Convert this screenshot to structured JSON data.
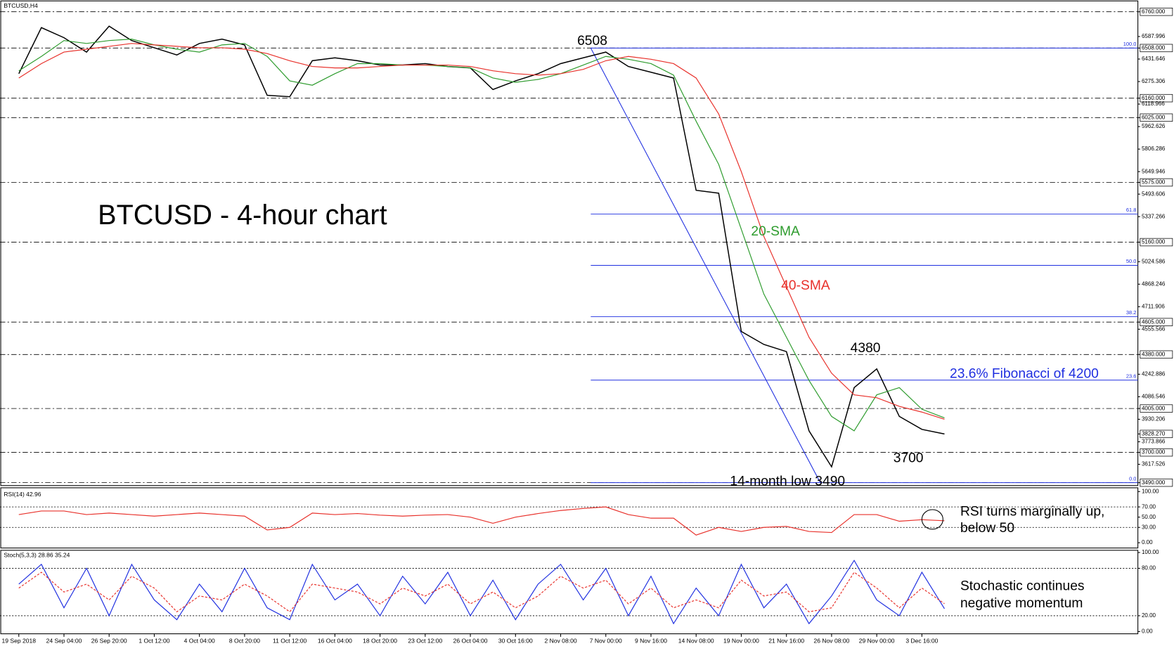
{
  "chart_data": [
    {
      "type": "line",
      "title": "BTCUSD - 4-hour chart",
      "subtitle": "BTCUSD,H4",
      "series": [
        {
          "color": "#000000",
          "values": [
            6330,
            6650,
            6580,
            6480,
            6660,
            6560,
            6510,
            6460,
            6540,
            6570,
            6530,
            6180,
            6170,
            6420,
            6440,
            6420,
            6390,
            6390,
            6400,
            6380,
            6370,
            6220,
            6280,
            6330,
            6400,
            6440,
            6480,
            6380,
            6340,
            6300,
            5520,
            5500,
            4540,
            4450,
            4400,
            3850,
            3600,
            4150,
            4280,
            3950,
            3860,
            3828.27
          ]
        },
        {
          "name": "20-SMA",
          "color": "#2e9c2e",
          "values": [
            6350,
            6450,
            6560,
            6540,
            6560,
            6570,
            6530,
            6500,
            6480,
            6530,
            6540,
            6450,
            6280,
            6250,
            6330,
            6400,
            6400,
            6390,
            6390,
            6380,
            6370,
            6300,
            6270,
            6290,
            6330,
            6390,
            6450,
            6430,
            6400,
            6320,
            6000,
            5700,
            5250,
            4800,
            4500,
            4200,
            3950,
            3850,
            4100,
            4150,
            4000,
            3940
          ]
        },
        {
          "name": "40-SMA",
          "color": "#e8312b",
          "values": [
            6300,
            6400,
            6480,
            6500,
            6520,
            6540,
            6530,
            6520,
            6510,
            6510,
            6500,
            6470,
            6420,
            6380,
            6370,
            6370,
            6380,
            6390,
            6390,
            6390,
            6380,
            6350,
            6330,
            6320,
            6330,
            6360,
            6420,
            6450,
            6430,
            6400,
            6300,
            6050,
            5650,
            5200,
            4850,
            4500,
            4250,
            4100,
            4080,
            4020,
            3980,
            3930
          ]
        }
      ],
      "ylim": [
        3470,
        6830
      ],
      "yticks": [
        {
          "value": 6760,
          "label": "6760.000"
        },
        {
          "value": 6587.996,
          "label": "6587.996"
        },
        {
          "value": 6508,
          "label": "6508.000"
        },
        {
          "value": 6431.646,
          "label": "6431.646"
        },
        {
          "value": 6275.306,
          "label": "6275.306"
        },
        {
          "value": 6160,
          "label": "6160.000"
        },
        {
          "value": 6118.966,
          "label": "6118.966"
        },
        {
          "value": 6025,
          "label": "6025.000"
        },
        {
          "value": 5962.626,
          "label": "5962.626"
        },
        {
          "value": 5806.286,
          "label": "5806.286"
        },
        {
          "value": 5649.946,
          "label": "5649.946"
        },
        {
          "value": 5575,
          "label": "5575.000"
        },
        {
          "value": 5493.606,
          "label": "5493.606"
        },
        {
          "value": 5337.266,
          "label": "5337.266"
        },
        {
          "value": 5160,
          "label": "5160.000"
        },
        {
          "value": 5024.586,
          "label": "5024.586"
        },
        {
          "value": 4868.246,
          "label": "4868.246"
        },
        {
          "value": 4711.906,
          "label": "4711.906"
        },
        {
          "value": 4605,
          "label": "4605.000"
        },
        {
          "value": 4555.566,
          "label": "4555.566"
        },
        {
          "value": 4380,
          "label": "4380.000"
        },
        {
          "value": 4242.886,
          "label": "4242.886"
        },
        {
          "value": 4086.546,
          "label": "4086.546"
        },
        {
          "value": 4005,
          "label": "4005.000"
        },
        {
          "value": 3930.206,
          "label": "3930.206"
        },
        {
          "value": 3828.27,
          "label": "3828.270"
        },
        {
          "value": 3773.866,
          "label": "3773.866"
        },
        {
          "value": 3700,
          "label": "3700.000"
        },
        {
          "value": 3617.526,
          "label": "3617.526"
        },
        {
          "value": 3490,
          "label": "3490.000"
        }
      ],
      "levels": [
        6760,
        6508,
        6160,
        6025,
        5575,
        5160,
        4605,
        4380,
        4005,
        3700,
        3490
      ],
      "fib": {
        "labels": [
          "100.0",
          "61.8",
          "50.0",
          "38.2",
          "23.6",
          "0.0"
        ],
        "values": [
          6508,
          5355,
          4999,
          4643,
          4202,
          3490
        ]
      },
      "annotations": [
        "6508",
        "4380",
        "23.6% Fibonacci of 4200",
        "3700",
        "14-month low 3490"
      ]
    },
    {
      "type": "line",
      "title": "RSI(14) 42.96",
      "series": [
        {
          "color": "#e8312b",
          "values": [
            55,
            62,
            62,
            55,
            58,
            55,
            52,
            55,
            58,
            55,
            52,
            25,
            30,
            58,
            55,
            57,
            54,
            52,
            54,
            55,
            50,
            38,
            50,
            57,
            63,
            67,
            70,
            55,
            48,
            48,
            15,
            30,
            22,
            30,
            32,
            22,
            20,
            55,
            55,
            42,
            45,
            43
          ]
        }
      ],
      "ylim": [
        0,
        100
      ],
      "yticks": [
        {
          "value": 100,
          "label": "100.00"
        },
        {
          "value": 70,
          "label": "70.00"
        },
        {
          "value": 50,
          "label": "50.00"
        },
        {
          "value": 30,
          "label": "30.00"
        },
        {
          "value": 0,
          "label": "0.00"
        }
      ],
      "levels": [
        70,
        30
      ],
      "annotations": [
        "RSI turns marginally up,",
        "below 50"
      ]
    },
    {
      "type": "line",
      "title": "Stoch(5,3,3) 28.86 35.24",
      "categories": [
        "19 Sep 2018",
        null,
        "24 Sep 04:00",
        null,
        "26 Sep 20:00",
        null,
        "1 Oct 12:00",
        null,
        "4 Oct 04:00",
        null,
        "8 Oct 20:00",
        null,
        "11 Oct 12:00",
        null,
        "16 Oct 04:00",
        null,
        "18 Oct 20:00",
        null,
        "23 Oct 12:00",
        null,
        "26 Oct 04:00",
        null,
        "30 Oct 16:00",
        null,
        "2 Nov 08:00",
        null,
        "7 Nov 00:00",
        null,
        "9 Nov 16:00",
        null,
        "14 Nov 08:00",
        null,
        "19 Nov 00:00",
        null,
        "21 Nov 16:00",
        null,
        "26 Nov 08:00",
        null,
        "29 Nov 00:00",
        null,
        "3 Dec 16:00",
        null
      ],
      "series": [
        {
          "color": "#1f2fe0",
          "values": [
            60,
            85,
            30,
            80,
            20,
            85,
            40,
            15,
            60,
            25,
            80,
            30,
            15,
            85,
            40,
            60,
            20,
            70,
            35,
            75,
            20,
            65,
            15,
            60,
            85,
            40,
            80,
            20,
            70,
            10,
            55,
            20,
            85,
            30,
            60,
            10,
            45,
            90,
            40,
            20,
            75,
            28.86
          ]
        },
        {
          "color": "#e8312b",
          "dashed": true,
          "values": [
            55,
            75,
            50,
            60,
            40,
            70,
            55,
            25,
            45,
            40,
            60,
            45,
            25,
            60,
            55,
            50,
            35,
            55,
            45,
            60,
            35,
            50,
            30,
            45,
            70,
            55,
            65,
            35,
            55,
            30,
            40,
            30,
            65,
            45,
            50,
            25,
            30,
            75,
            55,
            30,
            55,
            35.24
          ]
        }
      ],
      "ylim": [
        0,
        100
      ],
      "yticks": [
        {
          "value": 100,
          "label": "100.00"
        },
        {
          "value": 80,
          "label": "80.00"
        },
        {
          "value": 20,
          "label": "20.00"
        },
        {
          "value": 0,
          "label": "0.00"
        }
      ],
      "levels": [
        80,
        20
      ],
      "annotations": [
        "Stochastic continues",
        "negative momentum"
      ]
    }
  ]
}
